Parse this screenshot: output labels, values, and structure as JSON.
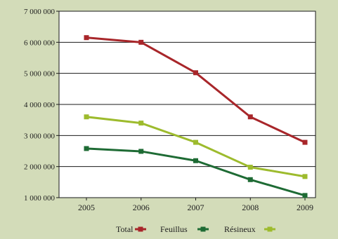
{
  "colors": {
    "background": "#d3dcb9",
    "plot_background": "#ffffff",
    "grid": "#1a1a1a",
    "total": "#a8262a",
    "feuillus": "#1e6b34",
    "resineux": "#9dbb2d"
  },
  "chart_data": {
    "type": "line",
    "title": "",
    "xlabel": "",
    "ylabel": "",
    "x": [
      "2005",
      "2006",
      "2007",
      "2008",
      "2009"
    ],
    "ylim": [
      1000000,
      7000000
    ],
    "yticks": [
      1000000,
      2000000,
      3000000,
      4000000,
      5000000,
      6000000,
      7000000
    ],
    "ytick_labels": [
      "1 000 000",
      "2 000 000",
      "3 000 000",
      "4 000 000",
      "5 000 000",
      "6 000 000",
      "7 000 000"
    ],
    "grid": "horizontal",
    "legend": "bottom-center",
    "series": [
      {
        "name": "Total",
        "color": "#a8262a",
        "values": [
          6150000,
          6000000,
          5020000,
          3600000,
          2780000
        ]
      },
      {
        "name": "Feuillus",
        "color": "#1e6b34",
        "values": [
          2580000,
          2490000,
          2190000,
          1580000,
          1070000
        ]
      },
      {
        "name": "Résineux",
        "color": "#9dbb2d",
        "values": [
          3600000,
          3400000,
          2780000,
          1980000,
          1680000
        ]
      }
    ]
  }
}
